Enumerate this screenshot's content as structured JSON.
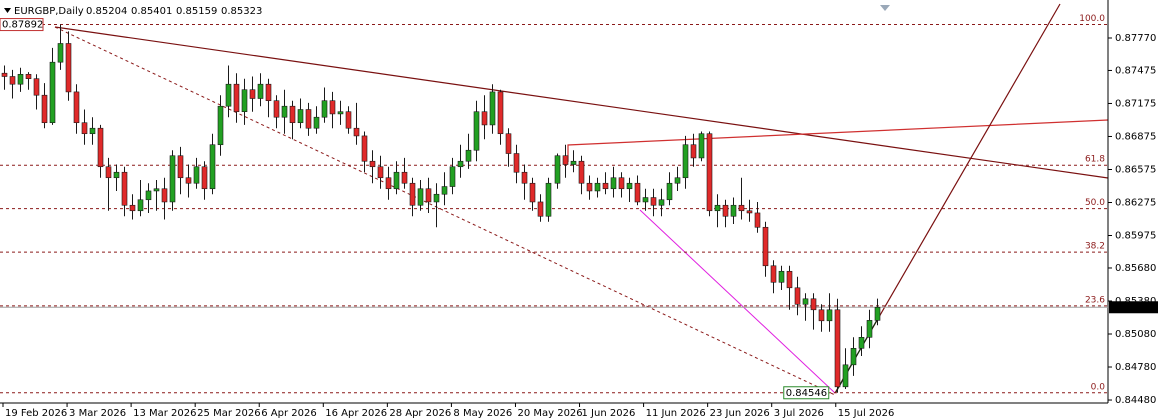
{
  "chart_data": {
    "type": "candlestick",
    "title": "EURGBP,Daily",
    "up_color": "#22a022",
    "down_color": "#e02a2a",
    "wick_color": "#1a1a1a",
    "open": [
      0.8745,
      0.8742,
      0.8735,
      0.8744,
      0.874,
      0.8725,
      0.87,
      0.8755,
      0.8772,
      0.8728,
      0.87,
      0.869,
      0.8695,
      0.866,
      0.865,
      0.8655,
      0.8625,
      0.862,
      0.863,
      0.8638,
      0.864,
      0.8628,
      0.867,
      0.865,
      0.8645,
      0.866,
      0.864,
      0.868,
      0.8715,
      0.8735,
      0.871,
      0.873,
      0.8722,
      0.8735,
      0.872,
      0.8705,
      0.8715,
      0.87,
      0.8712,
      0.8695,
      0.8705,
      0.872,
      0.8708,
      0.871,
      0.8695,
      0.8688,
      0.8665,
      0.866,
      0.865,
      0.864,
      0.8655,
      0.8645,
      0.8625,
      0.864,
      0.8628,
      0.8635,
      0.8642,
      0.866,
      0.8665,
      0.8675,
      0.871,
      0.8698,
      0.8728,
      0.869,
      0.8672,
      0.8655,
      0.8645,
      0.8628,
      0.8615,
      0.8645,
      0.867,
      0.8662,
      0.8665,
      0.8645,
      0.8638,
      0.8645,
      0.864,
      0.865,
      0.864,
      0.8645,
      0.8628,
      0.8632,
      0.8625,
      0.863,
      0.8645,
      0.865,
      0.868,
      0.8668,
      0.869,
      0.862,
      0.8625,
      0.8615,
      0.8625,
      0.862,
      0.8618,
      0.8605,
      0.857,
      0.8555,
      0.8565,
      0.855,
      0.8535,
      0.854,
      0.853,
      0.852,
      0.853,
      0.846,
      0.848,
      0.8495,
      0.8505,
      0.85204
    ],
    "high": [
      0.8752,
      0.8748,
      0.875,
      0.8746,
      0.8744,
      0.8736,
      0.8768,
      0.87892,
      0.8783,
      0.8735,
      0.8712,
      0.8705,
      0.8698,
      0.8668,
      0.8662,
      0.866,
      0.8635,
      0.8648,
      0.8645,
      0.8648,
      0.865,
      0.8675,
      0.8678,
      0.8662,
      0.8668,
      0.8665,
      0.869,
      0.8725,
      0.8752,
      0.8745,
      0.874,
      0.8742,
      0.8745,
      0.874,
      0.8725,
      0.873,
      0.872,
      0.8722,
      0.8718,
      0.8715,
      0.8732,
      0.8728,
      0.872,
      0.8715,
      0.8718,
      0.8692,
      0.8675,
      0.867,
      0.866,
      0.8665,
      0.8668,
      0.865,
      0.8648,
      0.865,
      0.8645,
      0.8655,
      0.8668,
      0.868,
      0.869,
      0.872,
      0.8725,
      0.8735,
      0.873,
      0.8695,
      0.868,
      0.8662,
      0.865,
      0.8635,
      0.865,
      0.8672,
      0.868,
      0.8675,
      0.867,
      0.8652,
      0.865,
      0.8655,
      0.866,
      0.8655,
      0.865,
      0.8652,
      0.864,
      0.864,
      0.864,
      0.8655,
      0.866,
      0.8688,
      0.869,
      0.8692,
      0.8692,
      0.8635,
      0.863,
      0.8632,
      0.865,
      0.863,
      0.8628,
      0.861,
      0.8575,
      0.857,
      0.857,
      0.856,
      0.8545,
      0.8545,
      0.8535,
      0.8545,
      0.854,
      0.8495,
      0.8505,
      0.8515,
      0.853,
      0.85401
    ],
    "low": [
      0.873,
      0.8722,
      0.8728,
      0.873,
      0.8712,
      0.8695,
      0.8698,
      0.8748,
      0.872,
      0.869,
      0.868,
      0.868,
      0.865,
      0.862,
      0.8638,
      0.8615,
      0.8612,
      0.8615,
      0.8618,
      0.862,
      0.8612,
      0.862,
      0.8635,
      0.8632,
      0.864,
      0.863,
      0.8635,
      0.867,
      0.8705,
      0.87,
      0.8698,
      0.871,
      0.8715,
      0.8705,
      0.8695,
      0.869,
      0.8685,
      0.8695,
      0.8688,
      0.869,
      0.87,
      0.8695,
      0.8698,
      0.869,
      0.868,
      0.8655,
      0.8645,
      0.864,
      0.863,
      0.8635,
      0.864,
      0.8615,
      0.862,
      0.8618,
      0.8605,
      0.8625,
      0.8635,
      0.865,
      0.8658,
      0.8665,
      0.8685,
      0.869,
      0.868,
      0.866,
      0.8645,
      0.863,
      0.862,
      0.861,
      0.861,
      0.864,
      0.865,
      0.8655,
      0.8635,
      0.863,
      0.8632,
      0.8635,
      0.8632,
      0.8632,
      0.8628,
      0.8625,
      0.862,
      0.8615,
      0.8615,
      0.8625,
      0.8638,
      0.864,
      0.866,
      0.8665,
      0.8615,
      0.8605,
      0.8605,
      0.8608,
      0.8612,
      0.861,
      0.86,
      0.856,
      0.8545,
      0.8548,
      0.853,
      0.8525,
      0.852,
      0.8512,
      0.851,
      0.851,
      0.84546,
      0.8458,
      0.847,
      0.8488,
      0.8495,
      0.85159
    ],
    "close": [
      0.8742,
      0.8735,
      0.8744,
      0.874,
      0.8725,
      0.87,
      0.8755,
      0.8772,
      0.8728,
      0.87,
      0.869,
      0.8695,
      0.866,
      0.865,
      0.8655,
      0.8625,
      0.862,
      0.863,
      0.8638,
      0.864,
      0.8628,
      0.867,
      0.865,
      0.8645,
      0.866,
      0.864,
      0.868,
      0.8715,
      0.8735,
      0.871,
      0.873,
      0.8722,
      0.8735,
      0.872,
      0.8705,
      0.8715,
      0.87,
      0.8712,
      0.8695,
      0.8705,
      0.872,
      0.8708,
      0.871,
      0.8695,
      0.8688,
      0.8665,
      0.866,
      0.865,
      0.864,
      0.8655,
      0.8645,
      0.8625,
      0.864,
      0.8628,
      0.8635,
      0.8642,
      0.866,
      0.8665,
      0.8675,
      0.871,
      0.8698,
      0.8728,
      0.869,
      0.8672,
      0.8655,
      0.8645,
      0.8628,
      0.8615,
      0.8645,
      0.867,
      0.8662,
      0.8665,
      0.8645,
      0.8638,
      0.8645,
      0.864,
      0.865,
      0.864,
      0.8645,
      0.8628,
      0.8632,
      0.8625,
      0.863,
      0.8645,
      0.865,
      0.868,
      0.8668,
      0.869,
      0.862,
      0.8625,
      0.8615,
      0.8625,
      0.862,
      0.8618,
      0.8605,
      0.857,
      0.8555,
      0.8565,
      0.855,
      0.8535,
      0.854,
      0.853,
      0.852,
      0.853,
      0.846,
      0.848,
      0.8495,
      0.8505,
      0.85204,
      0.85323
    ],
    "xlim": [
      -0.5,
      137.875
    ],
    "xticks": [
      {
        "value": 0,
        "label": "19 Feb 2026"
      },
      {
        "value": 8,
        "label": "3 Mar 2026"
      },
      {
        "value": 16,
        "label": "13 Mar 2026"
      },
      {
        "value": 24,
        "label": "25 Mar 2026"
      },
      {
        "value": 32,
        "label": "6 Apr 2026"
      },
      {
        "value": 40,
        "label": "16 Apr 2026"
      },
      {
        "value": 48,
        "label": "28 Apr 2026"
      },
      {
        "value": 56,
        "label": "8 May 2026"
      },
      {
        "value": 64,
        "label": "20 May 2026"
      },
      {
        "value": 72,
        "label": "1 Jun 2026"
      },
      {
        "value": 80,
        "label": "11 Jun 2026"
      },
      {
        "value": 88,
        "label": "23 Jun 2026"
      },
      {
        "value": 96,
        "label": "3 Jul 2026"
      },
      {
        "value": 104,
        "label": "15 Jul 2026"
      }
    ],
    "ylim": [
      0.84453,
      0.88097
    ],
    "yticks": [
      {
        "value": 0.8777,
        "label": "0.87770"
      },
      {
        "value": 0.87475,
        "label": "0.87475"
      },
      {
        "value": 0.87175,
        "label": "0.87175"
      },
      {
        "value": 0.86875,
        "label": "0.86875"
      },
      {
        "value": 0.86575,
        "label": "0.86575"
      },
      {
        "value": 0.86275,
        "label": "0.86275"
      },
      {
        "value": 0.85975,
        "label": "0.85975"
      },
      {
        "value": 0.8568,
        "label": "0.85680"
      },
      {
        "value": 0.8538,
        "label": "0.85380"
      },
      {
        "value": 0.8508,
        "label": "0.85080"
      },
      {
        "value": 0.8478,
        "label": "0.84780"
      },
      {
        "value": 0.8448,
        "label": "0.84480"
      }
    ],
    "fibonacci": {
      "color": "#8b1a1a",
      "levels": [
        {
          "value": 100,
          "label": "100.0"
        },
        61.8,
        {
          "value": 50,
          "label": "50.0"
        },
        38.2,
        23.6,
        {
          "value": 0,
          "label": "0.0"
        }
      ]
    }
  }
}
